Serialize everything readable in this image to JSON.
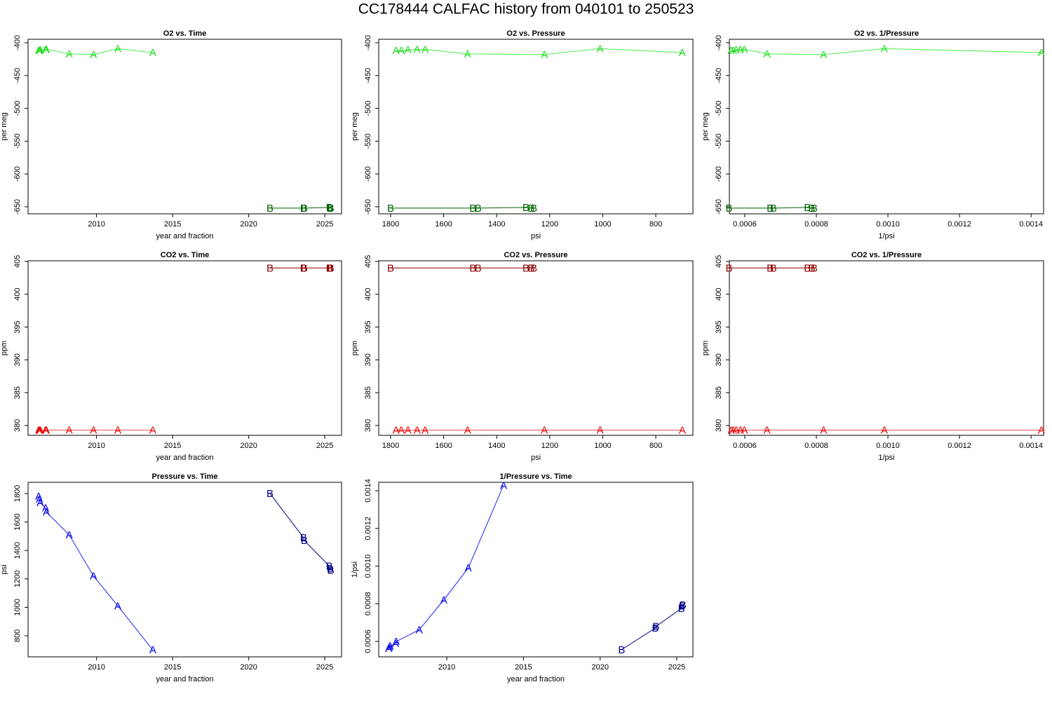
{
  "title": "CC178444   CALFAC history from  040101  to  250523",
  "chart_data": [
    {
      "type": "line",
      "title": "O2 vs. Time",
      "xlabel": "year and fraction",
      "ylabel": "per meg",
      "xlim": [
        2005.5,
        2026.1
      ],
      "xticks": [
        2010,
        2015,
        2020,
        2025
      ],
      "ylim": [
        -660.7,
        -394.7
      ],
      "yticks": [
        -400,
        -450,
        -500,
        -550,
        -600,
        -650
      ],
      "series": [
        {
          "name": "A",
          "color": "#22dd22",
          "line_color": "#44ee44",
          "x": [
            2006.2,
            2006.25,
            2006.3,
            2006.65,
            2006.7,
            2008.2,
            2009.8,
            2011.4,
            2013.7
          ],
          "values": [
            -412,
            -412,
            -411,
            -410,
            -410,
            -417,
            -418,
            -409,
            -415
          ]
        },
        {
          "name": "B",
          "color": "#006400",
          "line_color": "#006400",
          "x": [
            2021.4,
            2023.6,
            2023.65,
            2025.3,
            2025.35,
            2025.4
          ],
          "values": [
            -652,
            -652,
            -652,
            -651,
            -652,
            -652
          ]
        }
      ]
    },
    {
      "type": "line",
      "title": "O2 vs. Pressure",
      "xlabel": "psi",
      "ylabel": "per meg",
      "xlim": [
        1845,
        660
      ],
      "xticks": [
        1800,
        1600,
        1400,
        1200,
        1000,
        800
      ],
      "ylim": [
        -660.7,
        -394.7
      ],
      "yticks": [
        -400,
        -450,
        -500,
        -550,
        -600,
        -650
      ],
      "series": [
        {
          "name": "A",
          "color": "#22dd22",
          "line_color": "#44ee44",
          "x": [
            1780,
            1760,
            1735,
            1700,
            1670,
            1510,
            1220,
            1010,
            700
          ],
          "values": [
            -412,
            -412,
            -411,
            -410,
            -410,
            -417,
            -418,
            -409,
            -415
          ]
        },
        {
          "name": "B",
          "color": "#006400",
          "line_color": "#006400",
          "x": [
            1800,
            1490,
            1470,
            1290,
            1270,
            1260
          ],
          "values": [
            -652,
            -652,
            -652,
            -651,
            -652,
            -652
          ]
        }
      ]
    },
    {
      "type": "line",
      "title": "O2 vs. 1/Pressure",
      "xlabel": "1/psi",
      "ylabel": "per meg",
      "xlim": [
        0.000557,
        0.001435
      ],
      "xticks": [
        0.0006,
        0.0008,
        {
          "value": 0.001,
          "label": "0.0010"
        },
        0.0012,
        0.0014
      ],
      "ylim": [
        -660.7,
        -394.7
      ],
      "yticks": [
        -400,
        -450,
        -500,
        -550,
        -600,
        -650
      ],
      "series": [
        {
          "name": "A",
          "color": "#22dd22",
          "line_color": "#44ee44",
          "x": [
            0.000562,
            0.000568,
            0.000576,
            0.000588,
            0.000599,
            0.000662,
            0.00082,
            0.00099,
            0.001429
          ],
          "values": [
            -412,
            -412,
            -411,
            -410,
            -410,
            -417,
            -418,
            -409,
            -415
          ]
        },
        {
          "name": "B",
          "color": "#006400",
          "line_color": "#006400",
          "x": [
            0.000556,
            0.000671,
            0.00068,
            0.000775,
            0.000787,
            0.000794
          ],
          "values": [
            -652,
            -652,
            -652,
            -651,
            -652,
            -652
          ]
        }
      ]
    },
    {
      "type": "line",
      "title": "CO2 vs. Time",
      "xlabel": "year and fraction",
      "ylabel": "ppm",
      "xlim": [
        2005.5,
        2026.1
      ],
      "xticks": [
        2010,
        2015,
        2020,
        2025
      ],
      "ylim": [
        378.5,
        405.1
      ],
      "yticks": [
        380,
        385,
        390,
        395,
        400,
        405
      ],
      "series": [
        {
          "name": "A",
          "color": "#ee0000",
          "line_color": "#ee5555",
          "x": [
            2006.2,
            2006.25,
            2006.3,
            2006.65,
            2006.7,
            2008.2,
            2009.8,
            2011.4,
            2013.7
          ],
          "values": [
            379.3,
            379.3,
            379.3,
            379.3,
            379.3,
            379.3,
            379.3,
            379.3,
            379.3
          ]
        },
        {
          "name": "B",
          "color": "#8b0000",
          "line_color": "#8b0000",
          "x": [
            2021.4,
            2023.6,
            2023.65,
            2025.3,
            2025.35,
            2025.4
          ],
          "values": [
            404,
            404,
            404,
            404,
            404,
            404
          ]
        }
      ]
    },
    {
      "type": "line",
      "title": "CO2 vs. Pressure",
      "xlabel": "psi",
      "ylabel": "ppm",
      "xlim": [
        1845,
        660
      ],
      "xticks": [
        1800,
        1600,
        1400,
        1200,
        1000,
        800
      ],
      "ylim": [
        378.5,
        405.1
      ],
      "yticks": [
        380,
        385,
        390,
        395,
        400,
        405
      ],
      "series": [
        {
          "name": "A",
          "color": "#ee0000",
          "line_color": "#ee5555",
          "x": [
            1780,
            1760,
            1735,
            1700,
            1670,
            1510,
            1220,
            1010,
            700
          ],
          "values": [
            379.3,
            379.3,
            379.3,
            379.3,
            379.3,
            379.3,
            379.3,
            379.3,
            379.3
          ]
        },
        {
          "name": "B",
          "color": "#8b0000",
          "line_color": "#8b0000",
          "x": [
            1800,
            1490,
            1470,
            1290,
            1270,
            1260
          ],
          "values": [
            404,
            404,
            404,
            404,
            404,
            404
          ]
        }
      ]
    },
    {
      "type": "line",
      "title": "CO2 vs. 1/Pressure",
      "xlabel": "1/psi",
      "ylabel": "ppm",
      "xlim": [
        0.000557,
        0.001435
      ],
      "xticks": [
        0.0006,
        0.0008,
        {
          "value": 0.001,
          "label": "0.0010"
        },
        0.0012,
        0.0014
      ],
      "ylim": [
        378.5,
        405.1
      ],
      "yticks": [
        380,
        385,
        390,
        395,
        400,
        405
      ],
      "series": [
        {
          "name": "A",
          "color": "#ee0000",
          "line_color": "#ee5555",
          "x": [
            0.000562,
            0.000568,
            0.000576,
            0.000588,
            0.000599,
            0.000662,
            0.00082,
            0.00099,
            0.001429
          ],
          "values": [
            379.3,
            379.3,
            379.3,
            379.3,
            379.3,
            379.3,
            379.3,
            379.3,
            379.3
          ]
        },
        {
          "name": "B",
          "color": "#8b0000",
          "line_color": "#8b0000",
          "x": [
            0.000556,
            0.000671,
            0.00068,
            0.000775,
            0.000787,
            0.000794
          ],
          "values": [
            404,
            404,
            404,
            404,
            404,
            404
          ]
        }
      ]
    },
    {
      "type": "line",
      "title": "Pressure vs. Time",
      "xlabel": "year and fraction",
      "ylabel": "psi",
      "xlim": [
        2005.5,
        2026.1
      ],
      "xticks": [
        2010,
        2015,
        2020,
        2025
      ],
      "ylim": [
        652,
        1879
      ],
      "yticks": [
        800,
        1000,
        1200,
        1400,
        1600,
        1800
      ],
      "series": [
        {
          "name": "A",
          "color": "#0000ee",
          "line_color": "#2222ee",
          "x": [
            2006.2,
            2006.25,
            2006.3,
            2006.65,
            2006.7,
            2008.2,
            2009.8,
            2011.4,
            2013.7
          ],
          "values": [
            1780,
            1760,
            1735,
            1700,
            1670,
            1510,
            1220,
            1010,
            700
          ]
        },
        {
          "name": "B",
          "color": "#00008b",
          "line_color": "#00008b",
          "x": [
            2021.4,
            2023.6,
            2023.65,
            2025.3,
            2025.35,
            2025.4
          ],
          "values": [
            1800,
            1490,
            1470,
            1290,
            1270,
            1260
          ]
        }
      ]
    },
    {
      "type": "line",
      "title": "1/Pressure vs. Time",
      "xlabel": "year and fraction",
      "ylabel": "1/psi",
      "xlim": [
        2005.56,
        2026.05
      ],
      "xticks": [
        2010,
        2015,
        2020,
        2025
      ],
      "ylim": [
        0.000518,
        0.001445
      ],
      "yticks": [
        0.0006,
        0.0008,
        {
          "value": 0.001,
          "label": "0.0010"
        },
        0.0012,
        0.0014
      ],
      "series": [
        {
          "name": "A",
          "color": "#0000ee",
          "line_color": "#2222ee",
          "x": [
            2006.2,
            2006.25,
            2006.3,
            2006.65,
            2006.7,
            2008.2,
            2009.8,
            2011.4,
            2013.7
          ],
          "values": [
            0.000562,
            0.000568,
            0.000576,
            0.000588,
            0.000599,
            0.000662,
            0.00082,
            0.00099,
            0.001429
          ]
        },
        {
          "name": "B",
          "color": "#00008b",
          "line_color": "#00008b",
          "x": [
            2021.4,
            2023.6,
            2023.65,
            2025.3,
            2025.35,
            2025.4
          ],
          "values": [
            0.000556,
            0.000671,
            0.00068,
            0.000775,
            0.000787,
            0.000794
          ]
        }
      ]
    }
  ]
}
